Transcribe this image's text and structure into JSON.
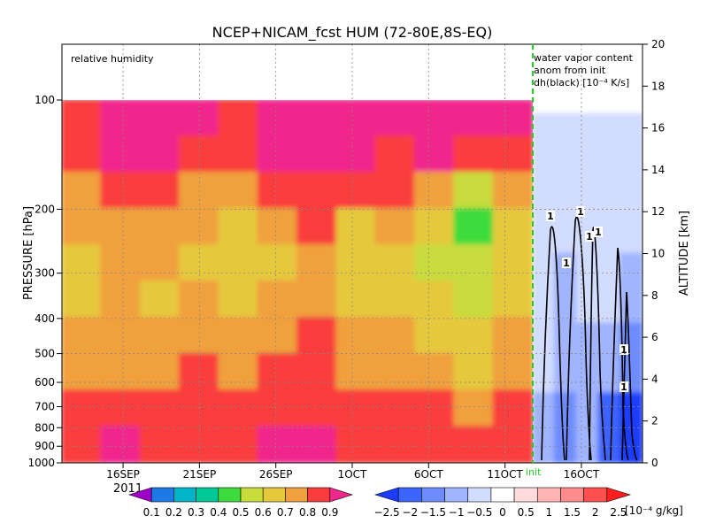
{
  "chart_data": {
    "type": "heatmap",
    "title": "NCEP+NICAM_fcst HUM (72-80E,8S-EQ)",
    "inner_label": "relative humidity",
    "y_label": "PRESSURE [hPa]",
    "y2_label": "ALTITUDE [km]",
    "year_label": "2011",
    "init_label": "init",
    "panel_note": [
      "water vapor content",
      "anom from init",
      "dh(black) [10⁻⁴ K/s]"
    ],
    "pressure_levels": [
      100,
      200,
      300,
      400,
      500,
      600,
      700,
      800,
      900,
      1000
    ],
    "pressure_ticks": [
      "100",
      "200",
      "300",
      "400",
      "500",
      "600",
      "700",
      "800",
      "900",
      "1000"
    ],
    "altitude_ticks": [
      "0",
      "2",
      "4",
      "6",
      "8",
      "10",
      "12",
      "14",
      "16",
      "18",
      "20"
    ],
    "altitude_range": [
      0,
      20
    ],
    "x_ticks": [
      "16SEP",
      "21SEP",
      "26SEP",
      "1OCT",
      "6OCT",
      "11OCT",
      "16OCT"
    ],
    "x_range": [
      "2011-09-12",
      "2011-10-20"
    ],
    "init_date": "2011-10-11",
    "contour_labels": [
      "1",
      "1",
      "1",
      "1",
      "1",
      "1",
      "1"
    ],
    "left_colorbar": {
      "ticks": [
        "0.1",
        "0.2",
        "0.3",
        "0.4",
        "0.5",
        "0.6",
        "0.7",
        "0.8",
        "0.9"
      ],
      "colors": [
        "#a000c8",
        "#1e78e6",
        "#00b4c8",
        "#00c896",
        "#3cdc3c",
        "#c8dc3c",
        "#e6c83c",
        "#f0a03c",
        "#fa3c3c",
        "#f0288c"
      ]
    },
    "right_colorbar": {
      "ticks": [
        "−2.5",
        "−2",
        "−1.5",
        "−1",
        "−0.5",
        "0",
        "0.5",
        "1",
        "1.5",
        "2",
        "2.5"
      ],
      "unit": "[10⁻⁴ g/kg]",
      "colors": [
        "#1e3cff",
        "#3c64ff",
        "#6e8cff",
        "#a0b4ff",
        "#d2dcff",
        "#ffffff",
        "#ffdcdc",
        "#ffb4b4",
        "#ff8c8c",
        "#ff5050",
        "#ff1e1e"
      ]
    },
    "humidity_fields": {
      "rows_top_to_bottom": "pressure from 100 to 1000 hPa",
      "columns": "time from 12SEP to 11OCT",
      "values": [
        [
          0.85,
          0.9,
          0.9,
          0.9,
          0.85,
          0.9,
          0.9,
          0.9,
          0.9,
          0.9,
          0.9,
          0.9
        ],
        [
          0.8,
          0.9,
          0.9,
          0.85,
          0.8,
          0.9,
          0.9,
          0.9,
          0.85,
          0.9,
          0.8,
          0.8
        ],
        [
          0.75,
          0.8,
          0.8,
          0.75,
          0.7,
          0.8,
          0.85,
          0.85,
          0.8,
          0.7,
          0.5,
          0.7
        ],
        [
          0.7,
          0.75,
          0.75,
          0.7,
          0.65,
          0.7,
          0.8,
          0.6,
          0.7,
          0.6,
          0.45,
          0.65
        ],
        [
          0.65,
          0.7,
          0.7,
          0.65,
          0.6,
          0.65,
          0.75,
          0.6,
          0.65,
          0.55,
          0.5,
          0.6
        ],
        [
          0.65,
          0.7,
          0.65,
          0.7,
          0.65,
          0.7,
          0.75,
          0.65,
          0.65,
          0.6,
          0.55,
          0.65
        ],
        [
          0.7,
          0.7,
          0.7,
          0.75,
          0.7,
          0.75,
          0.8,
          0.7,
          0.7,
          0.65,
          0.6,
          0.7
        ],
        [
          0.75,
          0.75,
          0.75,
          0.8,
          0.75,
          0.8,
          0.8,
          0.75,
          0.75,
          0.7,
          0.65,
          0.75
        ],
        [
          0.8,
          0.8,
          0.8,
          0.8,
          0.8,
          0.85,
          0.85,
          0.8,
          0.8,
          0.8,
          0.75,
          0.8
        ],
        [
          0.85,
          0.9,
          0.85,
          0.85,
          0.85,
          0.9,
          0.9,
          0.85,
          0.85,
          0.85,
          0.85,
          0.85
        ]
      ]
    },
    "anomaly_fields": {
      "rows_top_to_bottom": "altitude from 20 km to 0 km",
      "columns": "time from 11OCT to 20OCT",
      "values": [
        [
          0.2,
          0.1,
          0.1,
          0.2,
          0.1
        ],
        [
          -0.3,
          -0.4,
          -0.3,
          -0.4,
          -0.3
        ],
        [
          -0.4,
          -0.6,
          -0.5,
          -0.5,
          -0.6
        ],
        [
          -0.5,
          -0.8,
          -0.6,
          -0.7,
          -0.9
        ],
        [
          -0.7,
          -1.0,
          -0.8,
          -1.2,
          -1.5
        ],
        [
          -0.9,
          -1.3,
          -1.1,
          -1.8,
          -2.4
        ]
      ]
    }
  }
}
